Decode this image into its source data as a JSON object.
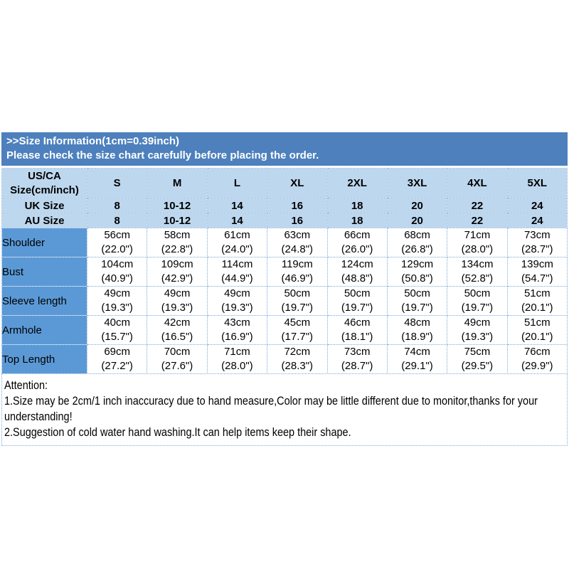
{
  "banner": {
    "line1": ">>Size Information(1cm=0.39inch)",
    "line2": "Please check the size chart carefully before placing the order."
  },
  "size_table": {
    "header": {
      "corner_line1": "US/CA",
      "corner_line2": "Size(cm/inch)",
      "columns": [
        "S",
        "M",
        "L",
        "XL",
        "2XL",
        "3XL",
        "4XL",
        "5XL"
      ]
    },
    "size_rows": [
      {
        "label": "UK Size",
        "values": [
          "8",
          "10-12",
          "14",
          "16",
          "18",
          "20",
          "22",
          "24"
        ]
      },
      {
        "label": "AU Size",
        "values": [
          "8",
          "10-12",
          "14",
          "16",
          "18",
          "20",
          "22",
          "24"
        ]
      }
    ],
    "measure_rows": [
      {
        "label": "Shoulder",
        "cells": [
          {
            "cm": "56cm",
            "inch": "(22.0\")"
          },
          {
            "cm": "58cm",
            "inch": "(22.8\")"
          },
          {
            "cm": "61cm",
            "inch": "(24.0\")"
          },
          {
            "cm": "63cm",
            "inch": "(24.8\")"
          },
          {
            "cm": "66cm",
            "inch": "(26.0\")"
          },
          {
            "cm": "68cm",
            "inch": "(26.8\")"
          },
          {
            "cm": "71cm",
            "inch": "(28.0\")"
          },
          {
            "cm": "73cm",
            "inch": "(28.7\")"
          }
        ]
      },
      {
        "label": "Bust",
        "cells": [
          {
            "cm": "104cm",
            "inch": "(40.9\")"
          },
          {
            "cm": "109cm",
            "inch": "(42.9\")"
          },
          {
            "cm": "114cm",
            "inch": "(44.9\")"
          },
          {
            "cm": "119cm",
            "inch": "(46.9\")"
          },
          {
            "cm": "124cm",
            "inch": "(48.8\")"
          },
          {
            "cm": "129cm",
            "inch": "(50.8\")"
          },
          {
            "cm": "134cm",
            "inch": "(52.8\")"
          },
          {
            "cm": "139cm",
            "inch": "(54.7\")"
          }
        ]
      },
      {
        "label": "Sleeve length",
        "cells": [
          {
            "cm": "49cm",
            "inch": "(19.3\")"
          },
          {
            "cm": "49cm",
            "inch": "(19.3\")"
          },
          {
            "cm": "49cm",
            "inch": "(19.3\")"
          },
          {
            "cm": "50cm",
            "inch": "(19.7\")"
          },
          {
            "cm": "50cm",
            "inch": "(19.7\")"
          },
          {
            "cm": "50cm",
            "inch": "(19.7\")"
          },
          {
            "cm": "50cm",
            "inch": "(19.7\")"
          },
          {
            "cm": "51cm",
            "inch": "(20.1\")"
          }
        ]
      },
      {
        "label": "Armhole",
        "cells": [
          {
            "cm": "40cm",
            "inch": "(15.7\")"
          },
          {
            "cm": "42cm",
            "inch": "(16.5\")"
          },
          {
            "cm": "43cm",
            "inch": "(16.9\")"
          },
          {
            "cm": "45cm",
            "inch": "(17.7\")"
          },
          {
            "cm": "46cm",
            "inch": "(18.1\")"
          },
          {
            "cm": "48cm",
            "inch": "(18.9\")"
          },
          {
            "cm": "49cm",
            "inch": "(19.3\")"
          },
          {
            "cm": "51cm",
            "inch": "(20.1\")"
          }
        ]
      },
      {
        "label": "Top Length",
        "cells": [
          {
            "cm": "69cm",
            "inch": "(27.2\")"
          },
          {
            "cm": "70cm",
            "inch": "(27.6\")"
          },
          {
            "cm": "71cm",
            "inch": "(28.0\")"
          },
          {
            "cm": "72cm",
            "inch": "(28.3\")"
          },
          {
            "cm": "73cm",
            "inch": "(28.7\")"
          },
          {
            "cm": "74cm",
            "inch": "(29.1\")"
          },
          {
            "cm": "75cm",
            "inch": "(29.5\")"
          },
          {
            "cm": "76cm",
            "inch": "(29.9\")"
          }
        ]
      }
    ]
  },
  "attention": {
    "title": "Attention:",
    "lines": [
      "1.Size may be 2cm/1 inch inaccuracy due to hand measure,Color may be little different due to monitor,thanks for your understanding!",
      "2.Suggestion of cold water hand washing.It can help items keep their shape."
    ]
  },
  "colors": {
    "banner_bg": "#4d80bd",
    "banner_text": "#ffffff",
    "header_bg": "#bdd7ee",
    "label_bg": "#5b99d6",
    "grid_border": "#7da9d8"
  }
}
